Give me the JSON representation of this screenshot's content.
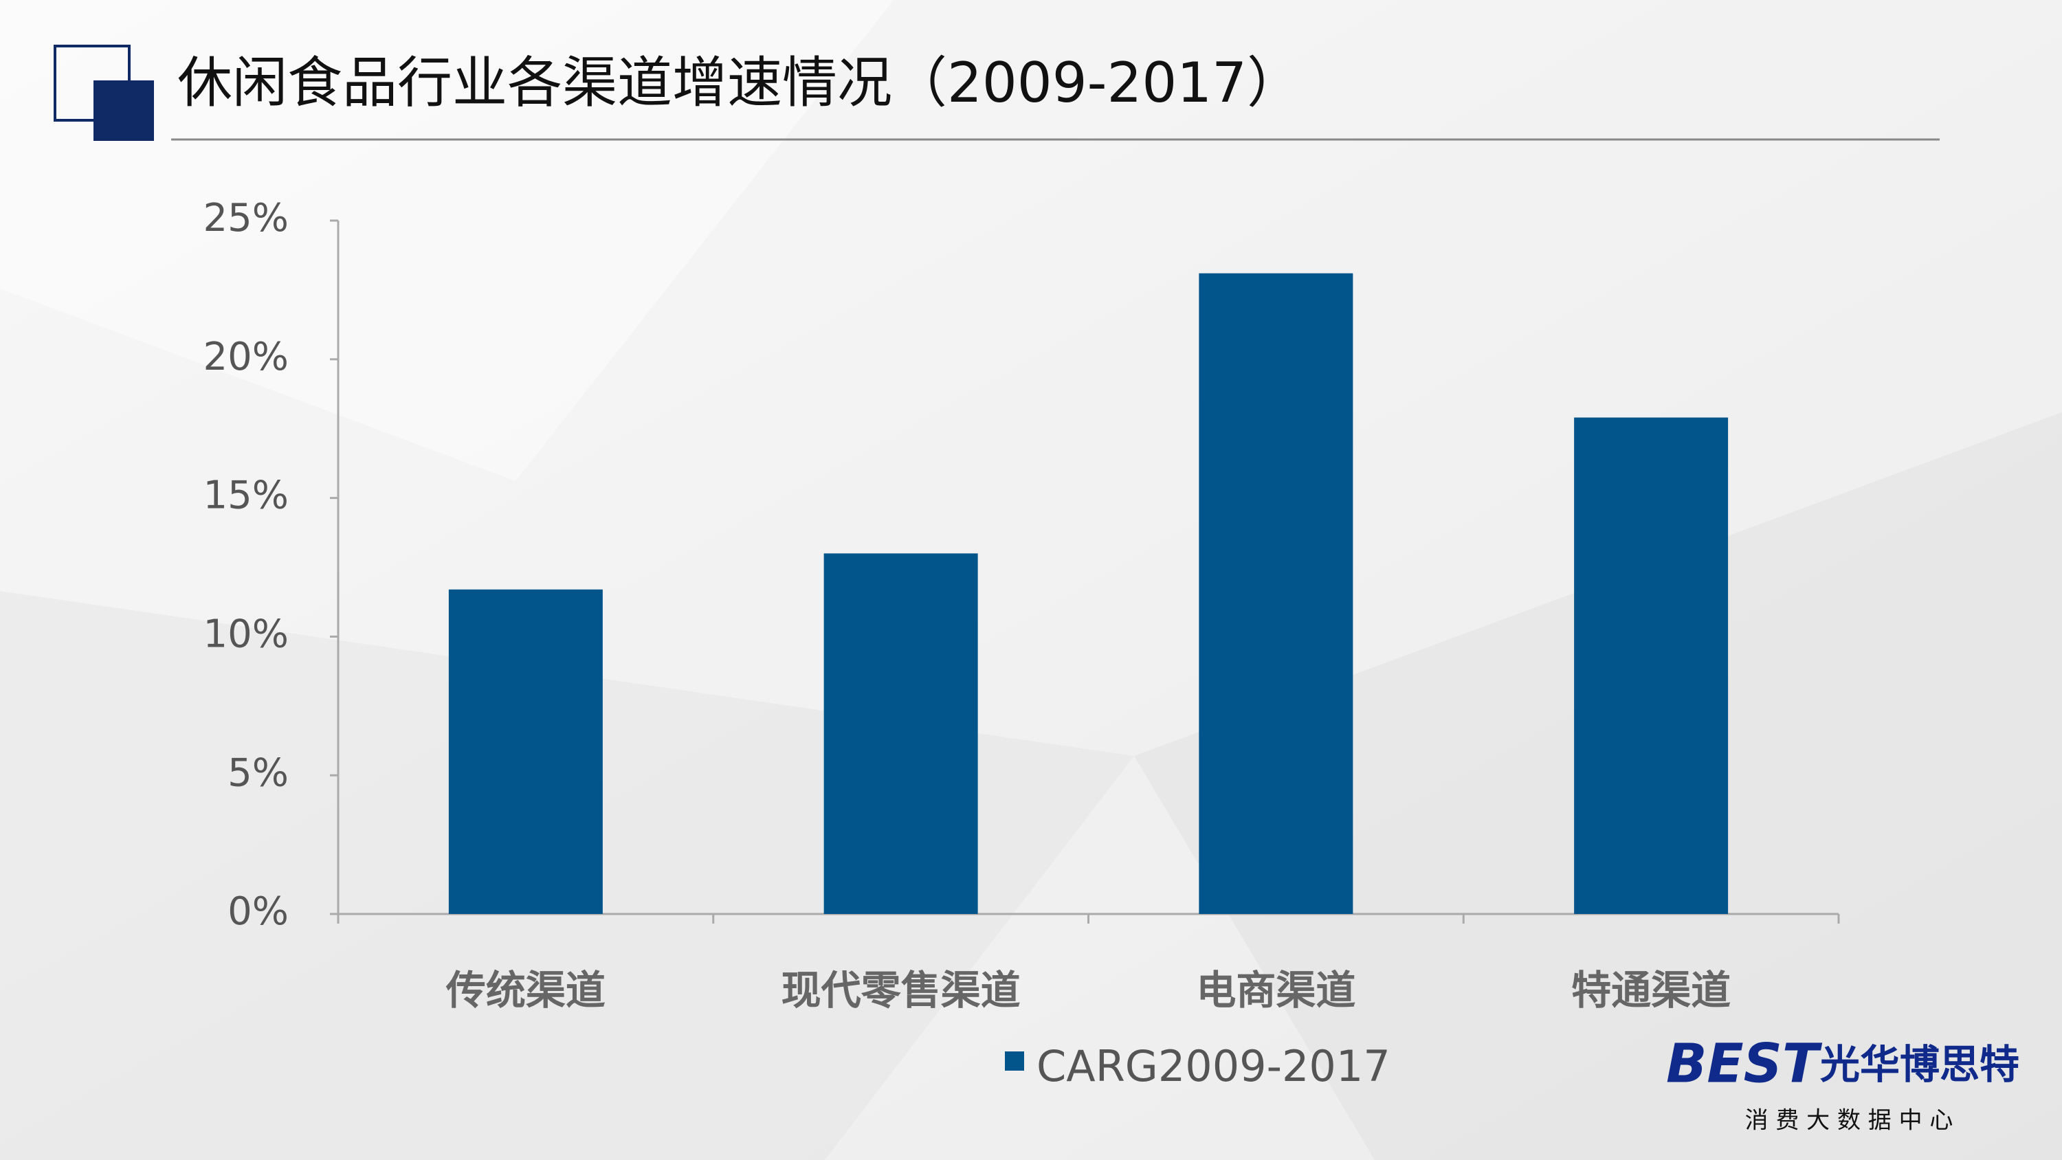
{
  "chart_data": {
    "type": "bar",
    "title": "休闲食品行业各渠道增速情况（2009-2017）",
    "categories": [
      "传统渠道",
      "现代零售渠道",
      "电商渠道",
      "特通渠道"
    ],
    "series": [
      {
        "name": "CARG2009-2017",
        "color": "#02558a",
        "values": [
          11.7,
          13,
          23.1,
          17.9
        ]
      }
    ],
    "ylim": [
      0,
      25
    ],
    "yticks": [
      {
        "value": 0,
        "label": "0%"
      },
      {
        "value": 5,
        "label": "5%"
      },
      {
        "value": 10,
        "label": "10%"
      },
      {
        "value": 15,
        "label": "15%"
      },
      {
        "value": 20,
        "label": "20%"
      },
      {
        "value": 25,
        "label": "25%"
      }
    ]
  },
  "logo": {
    "mark": "BEST",
    "name": "光华博思特",
    "tagline": "消 费 大 数 据 中 心"
  }
}
